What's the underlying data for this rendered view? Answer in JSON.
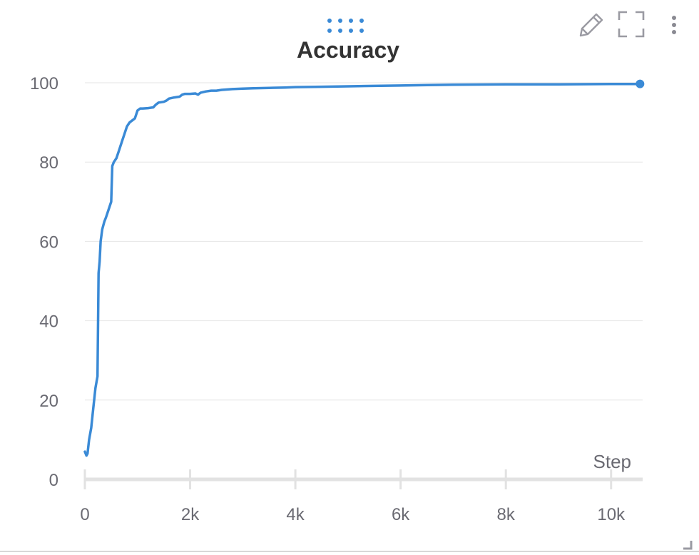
{
  "panel": {
    "title": "Accuracy",
    "accent_color": "#3a8ad6"
  },
  "toolbar": {
    "drag_icon": "drag-dots-icon",
    "edit_icon": "pencil-icon",
    "expand_icon": "fullscreen-icon",
    "more_icon": "vertical-dots-icon"
  },
  "chart_data": {
    "type": "line",
    "title": "Accuracy",
    "xlabel": "Step",
    "ylabel": "",
    "xlim": [
      0,
      10600
    ],
    "ylim": [
      0,
      100
    ],
    "x_ticks": [
      {
        "value": 0,
        "label": "0"
      },
      {
        "value": 2000,
        "label": "2k"
      },
      {
        "value": 4000,
        "label": "4k"
      },
      {
        "value": 6000,
        "label": "6k"
      },
      {
        "value": 8000,
        "label": "8k"
      },
      {
        "value": 10000,
        "label": "10k"
      }
    ],
    "y_ticks": [
      {
        "value": 0,
        "label": "0"
      },
      {
        "value": 20,
        "label": "20"
      },
      {
        "value": 40,
        "label": "40"
      },
      {
        "value": 60,
        "label": "60"
      },
      {
        "value": 80,
        "label": "80"
      },
      {
        "value": 100,
        "label": "100"
      }
    ],
    "grid": true,
    "series": [
      {
        "color": "#3a8ad6",
        "x": [
          0,
          30,
          50,
          80,
          120,
          160,
          200,
          240,
          260,
          280,
          300,
          330,
          370,
          400,
          450,
          500,
          520,
          550,
          600,
          650,
          700,
          750,
          800,
          850,
          900,
          950,
          1000,
          1050,
          1080,
          1100,
          1200,
          1300,
          1350,
          1400,
          1500,
          1550,
          1600,
          1700,
          1800,
          1850,
          1900,
          2000,
          2100,
          2150,
          2200,
          2300,
          2400,
          2500,
          2600,
          2800,
          3000,
          3200,
          3500,
          3800,
          4000,
          4500,
          5000,
          5500,
          6000,
          6500,
          7000,
          8000,
          9000,
          10000,
          10550
        ],
        "y": [
          7,
          6,
          6.5,
          10,
          13,
          18,
          23,
          26,
          52,
          55,
          60,
          63,
          65,
          66,
          68,
          70,
          79,
          80,
          81,
          83,
          85,
          87,
          89,
          90,
          90.5,
          91,
          93,
          93.5,
          93.5,
          93.5,
          93.6,
          93.8,
          94.5,
          95,
          95.2,
          95.5,
          96,
          96.3,
          96.5,
          97,
          97.2,
          97.2,
          97.3,
          97.0,
          97.5,
          97.8,
          98,
          98,
          98.2,
          98.4,
          98.5,
          98.6,
          98.7,
          98.8,
          98.9,
          99,
          99.1,
          99.2,
          99.3,
          99.4,
          99.5,
          99.6,
          99.6,
          99.7,
          99.7
        ]
      }
    ]
  }
}
